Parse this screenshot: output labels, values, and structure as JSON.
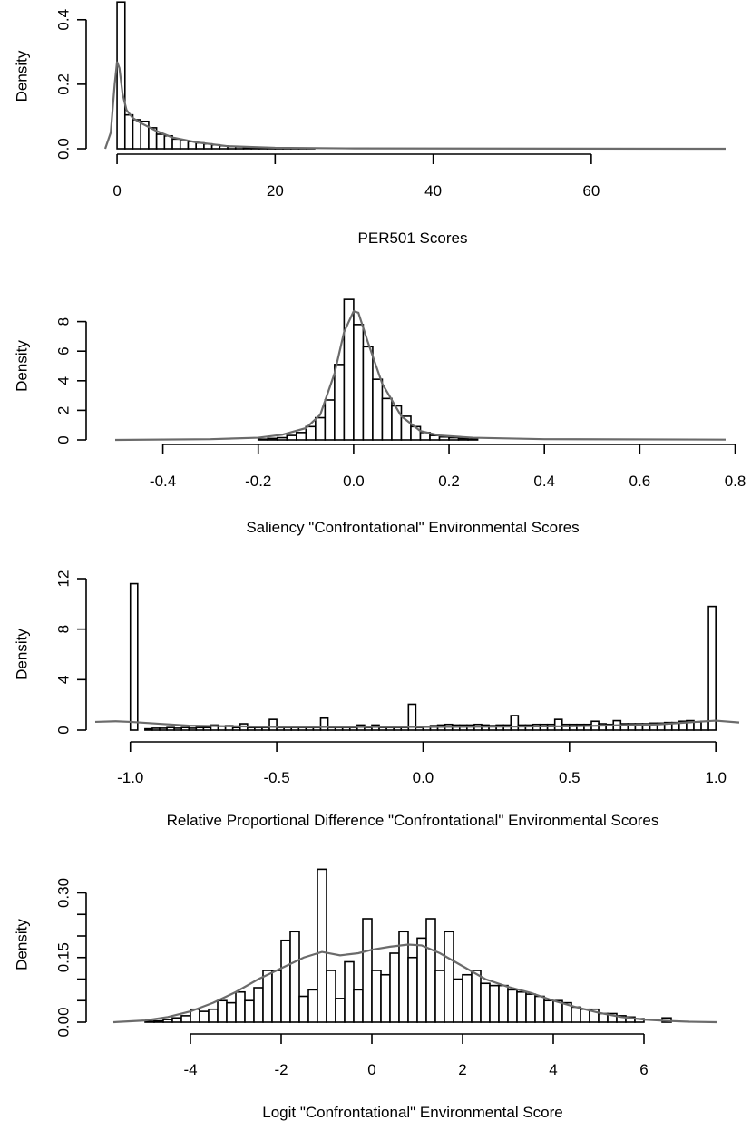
{
  "colors": {
    "bar_fill": "#ffffff",
    "bar_stroke": "#000000",
    "curve": "#6b6b6b",
    "background": "#ffffff"
  },
  "chart_data": [
    {
      "type": "bar",
      "subtype": "histogram-with-density",
      "xlabel": "PER501 Scores",
      "ylabel": "Density",
      "xlim": [
        -1.5,
        77
      ],
      "ylim": [
        0,
        0.45
      ],
      "x_ticks": [
        0,
        20,
        40,
        60
      ],
      "x_tick_labels": [
        "0",
        "20",
        "40",
        "60"
      ],
      "y_ticks": [
        0,
        0.2,
        0.4
      ],
      "y_tick_labels": [
        "0.0",
        "0.2",
        "0.4"
      ],
      "bin_edges": [
        0,
        1,
        2,
        3,
        4,
        5,
        6,
        7,
        8,
        9,
        10,
        11,
        12,
        13,
        14,
        15,
        16,
        17,
        18,
        19,
        20,
        21,
        22,
        23,
        24,
        25
      ],
      "values": [
        0.455,
        0.105,
        0.09,
        0.085,
        0.065,
        0.045,
        0.04,
        0.03,
        0.025,
        0.022,
        0.018,
        0.015,
        0.012,
        0.009,
        0.007,
        0.006,
        0.004,
        0.003,
        0.003,
        0.002,
        0.002,
        0.002,
        0.001,
        0.001,
        0.001
      ],
      "density_curve": {
        "x": [
          -1.5,
          -0.8,
          -0.3,
          0,
          0.3,
          0.7,
          1.2,
          2,
          3,
          5,
          7,
          10,
          14,
          20,
          30,
          77
        ],
        "y": [
          0.0,
          0.05,
          0.2,
          0.27,
          0.25,
          0.17,
          0.12,
          0.095,
          0.08,
          0.055,
          0.035,
          0.02,
          0.008,
          0.003,
          0.001,
          0.0
        ]
      }
    },
    {
      "type": "bar",
      "subtype": "histogram-with-density",
      "xlabel": "Saliency \"Confrontational\" Environmental Scores",
      "ylabel": "Density",
      "xlim": [
        -0.5,
        0.78
      ],
      "ylim": [
        0,
        10
      ],
      "x_ticks": [
        -0.4,
        -0.2,
        0.0,
        0.2,
        0.4,
        0.6,
        0.8
      ],
      "x_tick_labels": [
        "-0.4",
        "-0.2",
        "0.0",
        "0.2",
        "0.4",
        "0.6",
        "0.8"
      ],
      "y_ticks": [
        0,
        2,
        4,
        6,
        8
      ],
      "y_tick_labels": [
        "0",
        "2",
        "4",
        "6",
        "8"
      ],
      "bin_edges": [
        -0.2,
        -0.18,
        -0.16,
        -0.14,
        -0.12,
        -0.1,
        -0.08,
        -0.06,
        -0.04,
        -0.02,
        0.0,
        0.02,
        0.04,
        0.06,
        0.08,
        0.1,
        0.12,
        0.14,
        0.16,
        0.18,
        0.2,
        0.22,
        0.24,
        0.26
      ],
      "values": [
        0.05,
        0.1,
        0.15,
        0.3,
        0.5,
        0.9,
        1.5,
        2.7,
        5.1,
        9.5,
        7.8,
        6.3,
        4.1,
        2.8,
        2.3,
        1.6,
        0.9,
        0.5,
        0.3,
        0.2,
        0.15,
        0.1,
        0.05
      ],
      "density_curve": {
        "x": [
          -0.5,
          -0.3,
          -0.2,
          -0.15,
          -0.1,
          -0.07,
          -0.04,
          -0.02,
          0.0,
          0.01,
          0.03,
          0.06,
          0.1,
          0.14,
          0.18,
          0.25,
          0.4,
          0.78
        ],
        "y": [
          0.0,
          0.05,
          0.15,
          0.35,
          0.8,
          1.7,
          4.5,
          7.3,
          8.7,
          8.6,
          6.6,
          3.8,
          1.6,
          0.6,
          0.3,
          0.15,
          0.05,
          0.02
        ]
      }
    },
    {
      "type": "bar",
      "subtype": "histogram-with-density",
      "xlabel": "Relative Proportional Difference \"Confrontational\" Environmental Scores",
      "ylabel": "Density",
      "xlim": [
        -1.12,
        1.08
      ],
      "ylim": [
        0,
        12
      ],
      "x_ticks": [
        -1.0,
        -0.5,
        0.0,
        0.5,
        1.0
      ],
      "x_tick_labels": [
        "-1.0",
        "-0.5",
        "0.0",
        "0.5",
        "1.0"
      ],
      "y_ticks": [
        0,
        4,
        8,
        12
      ],
      "y_tick_labels": [
        "0",
        "4",
        "8",
        "12"
      ],
      "bin_edges": [
        -1.0,
        -0.975,
        -0.95,
        -0.925,
        -0.9,
        -0.875,
        -0.85,
        -0.825,
        -0.8,
        -0.775,
        -0.75,
        -0.725,
        -0.7,
        -0.675,
        -0.65,
        -0.625,
        -0.6,
        -0.575,
        -0.55,
        -0.525,
        -0.5,
        -0.475,
        -0.45,
        -0.425,
        -0.4,
        -0.375,
        -0.35,
        -0.325,
        -0.3,
        -0.275,
        -0.25,
        -0.225,
        -0.2,
        -0.175,
        -0.15,
        -0.125,
        -0.1,
        -0.075,
        -0.05,
        -0.025,
        0.0,
        0.025,
        0.05,
        0.075,
        0.1,
        0.125,
        0.15,
        0.175,
        0.2,
        0.225,
        0.25,
        0.275,
        0.3,
        0.325,
        0.35,
        0.375,
        0.4,
        0.425,
        0.45,
        0.475,
        0.5,
        0.525,
        0.55,
        0.575,
        0.6,
        0.625,
        0.65,
        0.675,
        0.7,
        0.725,
        0.75,
        0.775,
        0.8,
        0.825,
        0.85,
        0.875,
        0.9,
        0.925,
        0.95,
        0.975,
        1.0
      ],
      "values": [
        11.6,
        0.0,
        0.1,
        0.15,
        0.15,
        0.2,
        0.15,
        0.2,
        0.15,
        0.2,
        0.2,
        0.4,
        0.3,
        0.35,
        0.2,
        0.5,
        0.2,
        0.2,
        0.2,
        0.85,
        0.2,
        0.2,
        0.2,
        0.2,
        0.2,
        0.2,
        0.95,
        0.2,
        0.2,
        0.2,
        0.2,
        0.4,
        0.2,
        0.4,
        0.2,
        0.2,
        0.2,
        0.2,
        2.05,
        0.2,
        0.3,
        0.35,
        0.4,
        0.45,
        0.4,
        0.4,
        0.4,
        0.45,
        0.4,
        0.35,
        0.4,
        0.4,
        1.15,
        0.4,
        0.4,
        0.45,
        0.45,
        0.45,
        0.85,
        0.45,
        0.45,
        0.45,
        0.45,
        0.7,
        0.5,
        0.45,
        0.75,
        0.5,
        0.5,
        0.5,
        0.5,
        0.55,
        0.55,
        0.6,
        0.6,
        0.7,
        0.75,
        0.65,
        0.7,
        9.8
      ],
      "density_curve": {
        "x": [
          -1.12,
          -1.05,
          -1.0,
          -0.9,
          -0.8,
          -0.5,
          0.0,
          0.5,
          0.8,
          0.9,
          1.0,
          1.08
        ],
        "y": [
          0.65,
          0.7,
          0.65,
          0.5,
          0.35,
          0.25,
          0.25,
          0.3,
          0.45,
          0.6,
          0.75,
          0.6
        ]
      }
    },
    {
      "type": "bar",
      "subtype": "histogram-with-density",
      "xlabel": "Logit \"Confrontational\" Environmental Score",
      "ylabel": "Density",
      "xlim": [
        -5.7,
        7.6
      ],
      "ylim": [
        0,
        0.36
      ],
      "x_ticks": [
        -4,
        -2,
        0,
        2,
        4,
        6
      ],
      "x_tick_labels": [
        "-4",
        "-2",
        "0",
        "2",
        "4",
        "6"
      ],
      "y_ticks": [
        0.0,
        0.05,
        0.1,
        0.15,
        0.2,
        0.25,
        0.3
      ],
      "y_tick_labels": [
        "0.00",
        "",
        "",
        "0.15",
        "",
        "",
        "0.30"
      ],
      "bin_edges": [
        -5.2,
        -5.0,
        -4.8,
        -4.6,
        -4.4,
        -4.2,
        -4.0,
        -3.8,
        -3.6,
        -3.4,
        -3.2,
        -3.0,
        -2.8,
        -2.6,
        -2.4,
        -2.2,
        -2.0,
        -1.8,
        -1.6,
        -1.4,
        -1.2,
        -1.0,
        -0.8,
        -0.6,
        -0.4,
        -0.2,
        0.0,
        0.2,
        0.4,
        0.6,
        0.8,
        1.0,
        1.2,
        1.4,
        1.6,
        1.8,
        2.0,
        2.2,
        2.4,
        2.6,
        2.8,
        3.0,
        3.2,
        3.4,
        3.6,
        3.8,
        4.0,
        4.2,
        4.4,
        4.6,
        4.8,
        5.0,
        5.2,
        5.4,
        5.6,
        5.8,
        6.0,
        6.2,
        6.4,
        6.6
      ],
      "values": [
        0.0,
        0.002,
        0.003,
        0.006,
        0.01,
        0.015,
        0.03,
        0.025,
        0.03,
        0.05,
        0.045,
        0.07,
        0.05,
        0.08,
        0.12,
        0.12,
        0.19,
        0.21,
        0.06,
        0.075,
        0.355,
        0.12,
        0.055,
        0.14,
        0.075,
        0.24,
        0.12,
        0.11,
        0.16,
        0.21,
        0.15,
        0.195,
        0.24,
        0.12,
        0.21,
        0.1,
        0.11,
        0.12,
        0.09,
        0.085,
        0.085,
        0.075,
        0.07,
        0.065,
        0.06,
        0.05,
        0.05,
        0.045,
        0.035,
        0.03,
        0.03,
        0.02,
        0.02,
        0.015,
        0.012,
        0.008,
        0.0,
        0.0,
        0.01
      ],
      "density_curve": {
        "x": [
          -5.7,
          -5.0,
          -4.5,
          -4.0,
          -3.5,
          -3.0,
          -2.5,
          -2.0,
          -1.5,
          -1.1,
          -0.7,
          -0.3,
          0.0,
          0.4,
          0.8,
          1.1,
          1.5,
          2.0,
          2.5,
          3.0,
          3.5,
          4.0,
          4.5,
          5.0,
          5.5,
          6.0,
          6.5,
          7.0,
          7.6
        ],
        "y": [
          0.0,
          0.004,
          0.012,
          0.025,
          0.045,
          0.07,
          0.1,
          0.125,
          0.15,
          0.163,
          0.155,
          0.16,
          0.168,
          0.175,
          0.18,
          0.178,
          0.16,
          0.13,
          0.1,
          0.082,
          0.068,
          0.05,
          0.035,
          0.022,
          0.012,
          0.006,
          0.003,
          0.001,
          0.0
        ]
      }
    }
  ]
}
